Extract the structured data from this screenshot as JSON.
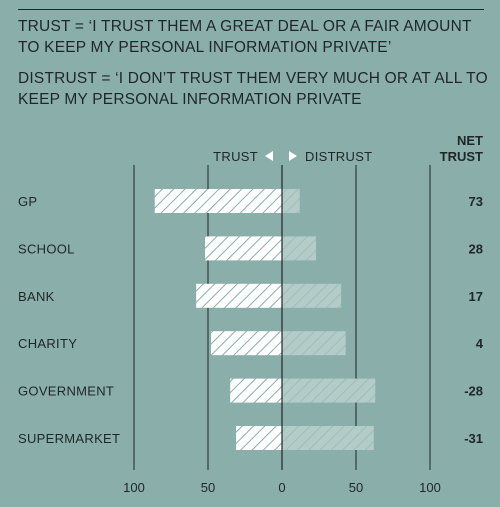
{
  "definitions": {
    "trust": "TRUST = ‘I TRUST THEM A GREAT DEAL OR A FAIR AMOUNT TO KEEP MY PERSONAL INFORMATION PRIVATE’",
    "distrust": "DISTRUST = ‘I DON’T TRUST THEM VERY MUCH OR AT ALL TO KEEP MY PERSONAL INFORMATION PRIVATE"
  },
  "colors": {
    "background": "#8aaea9",
    "trust_bar": "#ffffff",
    "distrust_bar": "#b3ccc8",
    "ink": "#1f2628"
  },
  "chart_data": {
    "type": "bar",
    "orientation": "horizontal-diverging",
    "direction_labels": {
      "trust": "TRUST",
      "distrust": "DISTRUST"
    },
    "net_header": [
      "NET",
      "TRUST"
    ],
    "categories": [
      "GP",
      "SCHOOL",
      "BANK",
      "CHARITY",
      "GOVERNMENT",
      "SUPERMARKET"
    ],
    "series": [
      {
        "name": "TRUST",
        "values": [
          86,
          52,
          58,
          48,
          35,
          31
        ]
      },
      {
        "name": "DISTRUST",
        "values": [
          12,
          23,
          40,
          43,
          63,
          62
        ]
      }
    ],
    "net_trust": [
      "73",
      "28",
      "17",
      "4",
      "-28",
      "-31"
    ],
    "xlim": [
      -100,
      100
    ],
    "ticks": [
      -100,
      -50,
      0,
      50,
      100
    ],
    "tick_labels": [
      "100",
      "50",
      "0",
      "50",
      "100"
    ],
    "grid": true
  }
}
